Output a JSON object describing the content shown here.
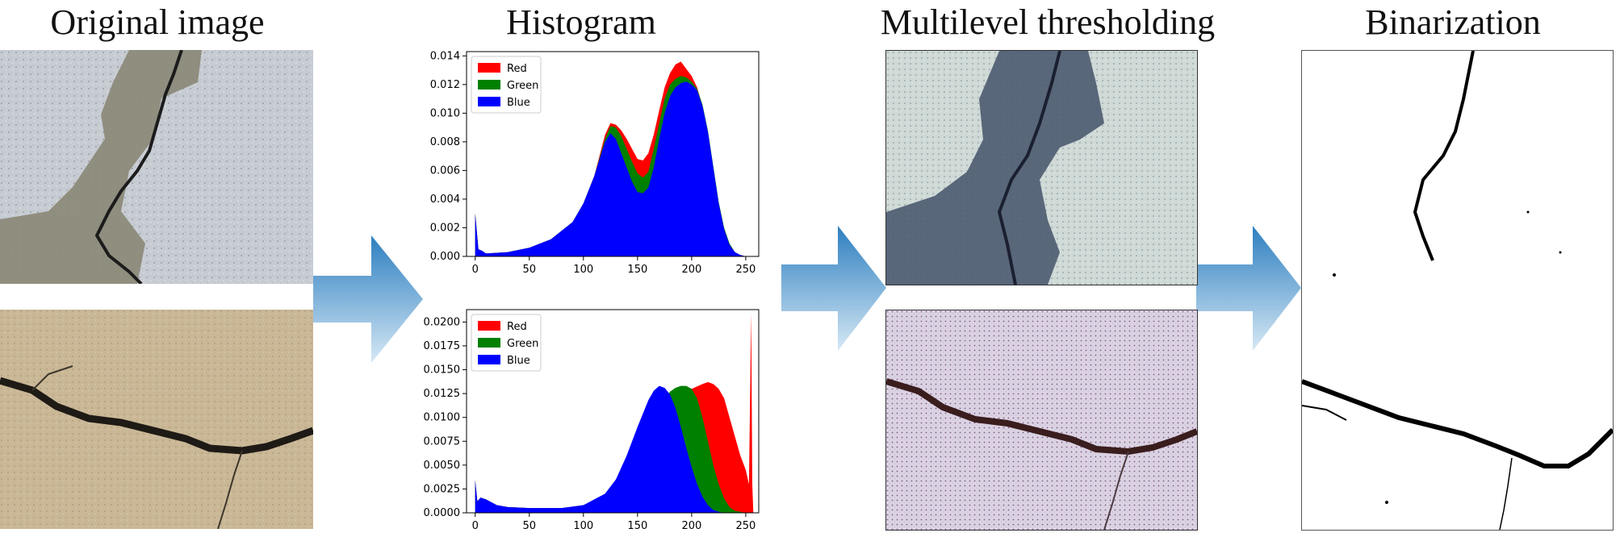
{
  "stages": {
    "original": "Original image",
    "histogram": "Histogram",
    "thresholding": "Multilevel thresholding",
    "binarization": "Binarization"
  },
  "legend": [
    "Red",
    "Green",
    "Blue"
  ],
  "colors": {
    "red": "#ff0000",
    "green": "#008000",
    "blue": "#0000ff",
    "arrow": "#3a8fc8"
  },
  "chart_data": [
    {
      "type": "area",
      "x_ticks": [
        "0",
        "50",
        "100",
        "150",
        "200",
        "250"
      ],
      "y_ticks": [
        "0.000",
        "0.002",
        "0.004",
        "0.006",
        "0.008",
        "0.010",
        "0.012",
        "0.014"
      ],
      "xlim": [
        -8,
        262
      ],
      "ylim": [
        0,
        0.0143
      ],
      "legend_position": "top-left",
      "series": [
        {
          "name": "Red",
          "x": [
            0,
            3,
            6,
            10,
            30,
            50,
            70,
            90,
            100,
            110,
            120,
            125,
            130,
            135,
            140,
            145,
            150,
            155,
            160,
            165,
            170,
            175,
            180,
            185,
            190,
            193,
            196,
            200,
            205,
            210,
            215,
            220,
            225,
            230,
            235,
            240,
            245,
            250,
            255
          ],
          "y": [
            0.003,
            0.0005,
            0.0004,
            0.0002,
            0.0003,
            0.0006,
            0.0012,
            0.0024,
            0.0037,
            0.0056,
            0.0085,
            0.0093,
            0.0092,
            0.0088,
            0.0082,
            0.0075,
            0.0068,
            0.0067,
            0.0072,
            0.0085,
            0.0102,
            0.0118,
            0.0128,
            0.0134,
            0.0136,
            0.0133,
            0.013,
            0.0126,
            0.0118,
            0.0105,
            0.0085,
            0.006,
            0.0036,
            0.0019,
            0.0008,
            0.0003,
            0.0001,
            0,
            0
          ]
        },
        {
          "name": "Green",
          "x": [
            0,
            3,
            6,
            10,
            30,
            50,
            70,
            90,
            100,
            110,
            120,
            125,
            130,
            135,
            140,
            145,
            150,
            155,
            160,
            165,
            170,
            175,
            180,
            185,
            190,
            195,
            200,
            205,
            210,
            215,
            220,
            225,
            230,
            235,
            240,
            245,
            250,
            255
          ],
          "y": [
            0.003,
            0.0005,
            0.0004,
            0.0002,
            0.0003,
            0.0006,
            0.0012,
            0.0024,
            0.0037,
            0.0056,
            0.0082,
            0.0091,
            0.009,
            0.0084,
            0.0075,
            0.0066,
            0.0058,
            0.0055,
            0.0059,
            0.0075,
            0.0093,
            0.011,
            0.012,
            0.0124,
            0.0126,
            0.0125,
            0.0122,
            0.0117,
            0.0106,
            0.0088,
            0.0063,
            0.0038,
            0.002,
            0.0009,
            0.0003,
            0.0001,
            0,
            0
          ]
        },
        {
          "name": "Blue",
          "x": [
            0,
            3,
            6,
            10,
            30,
            50,
            70,
            90,
            100,
            110,
            120,
            125,
            130,
            135,
            140,
            145,
            150,
            155,
            160,
            165,
            170,
            175,
            180,
            185,
            190,
            195,
            200,
            205,
            210,
            215,
            220,
            225,
            230,
            235,
            240,
            245,
            250,
            255
          ],
          "y": [
            0.003,
            0.0005,
            0.0004,
            0.0002,
            0.0003,
            0.0006,
            0.0012,
            0.0024,
            0.0037,
            0.0056,
            0.008,
            0.0086,
            0.0082,
            0.0072,
            0.0062,
            0.0052,
            0.0045,
            0.0044,
            0.0048,
            0.0062,
            0.0082,
            0.01,
            0.0112,
            0.0118,
            0.0121,
            0.0122,
            0.012,
            0.0116,
            0.0105,
            0.0087,
            0.0062,
            0.0037,
            0.0019,
            0.0008,
            0.0003,
            0.0001,
            0,
            0
          ]
        }
      ]
    },
    {
      "type": "area",
      "x_ticks": [
        "0",
        "50",
        "100",
        "150",
        "200",
        "250"
      ],
      "y_ticks": [
        "0.0000",
        "0.0025",
        "0.0050",
        "0.0075",
        "0.0100",
        "0.0125",
        "0.0150",
        "0.0175",
        "0.0200"
      ],
      "xlim": [
        -8,
        262
      ],
      "ylim": [
        0,
        0.0213
      ],
      "legend_position": "top-left",
      "series": [
        {
          "name": "Red",
          "x": [
            0,
            2,
            5,
            10,
            20,
            30,
            50,
            80,
            100,
            120,
            140,
            160,
            170,
            180,
            190,
            200,
            210,
            215,
            220,
            225,
            230,
            235,
            240,
            245,
            250,
            253,
            255,
            256,
            257
          ],
          "y": [
            0.0034,
            0.0012,
            0.0016,
            0.0014,
            0.0008,
            0.0006,
            0.0005,
            0.0005,
            0.0008,
            0.0017,
            0.004,
            0.008,
            0.01,
            0.0115,
            0.0124,
            0.013,
            0.0135,
            0.0137,
            0.0135,
            0.013,
            0.012,
            0.01,
            0.008,
            0.006,
            0.0045,
            0.003,
            0.021,
            0.003,
            0
          ]
        },
        {
          "name": "Green",
          "x": [
            0,
            2,
            5,
            10,
            20,
            30,
            50,
            80,
            100,
            120,
            140,
            160,
            170,
            180,
            185,
            190,
            195,
            200,
            205,
            210,
            215,
            220,
            225,
            230,
            235,
            240,
            245,
            250
          ],
          "y": [
            0.0034,
            0.0012,
            0.0016,
            0.0014,
            0.0008,
            0.0006,
            0.0005,
            0.0005,
            0.0008,
            0.0017,
            0.0042,
            0.009,
            0.0112,
            0.0127,
            0.0131,
            0.0133,
            0.0133,
            0.013,
            0.012,
            0.01,
            0.0075,
            0.005,
            0.003,
            0.0015,
            0.0006,
            0.0002,
            0.0001,
            0
          ]
        },
        {
          "name": "Blue",
          "x": [
            0,
            2,
            5,
            10,
            20,
            30,
            50,
            80,
            100,
            120,
            130,
            140,
            150,
            160,
            165,
            170,
            175,
            180,
            185,
            190,
            195,
            200,
            205,
            210,
            215,
            220,
            225,
            230
          ],
          "y": [
            0.0034,
            0.0012,
            0.0016,
            0.0014,
            0.0008,
            0.0006,
            0.0005,
            0.0005,
            0.0008,
            0.002,
            0.0035,
            0.006,
            0.009,
            0.0118,
            0.0128,
            0.0133,
            0.0131,
            0.0124,
            0.011,
            0.009,
            0.0068,
            0.0048,
            0.003,
            0.0017,
            0.0008,
            0.0003,
            0.0001,
            0
          ]
        }
      ]
    }
  ]
}
